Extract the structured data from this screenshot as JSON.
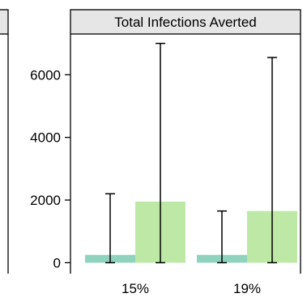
{
  "chart_data": {
    "type": "bar",
    "title": "Total Infections Averted",
    "categories": [
      "15%",
      "19%"
    ],
    "ylim": [
      -350,
      7300
    ],
    "yticks": [
      0,
      2000,
      4000,
      6000
    ],
    "ytick_labels": [
      "0",
      "2000",
      "4000",
      "6000"
    ],
    "grid": false,
    "series": [
      {
        "color": "#8fd3bf",
        "values": [
          250,
          250
        ],
        "error_low": [
          0,
          0
        ],
        "error_high": [
          2200,
          1650
        ]
      },
      {
        "color": "#bde8a6",
        "values": [
          1950,
          1650
        ],
        "error_low": [
          0,
          0
        ],
        "error_high": [
          7000,
          6550
        ]
      }
    ],
    "left_panel_partial": {
      "note_visible": "edge of adjacent panel strip and frame"
    }
  }
}
